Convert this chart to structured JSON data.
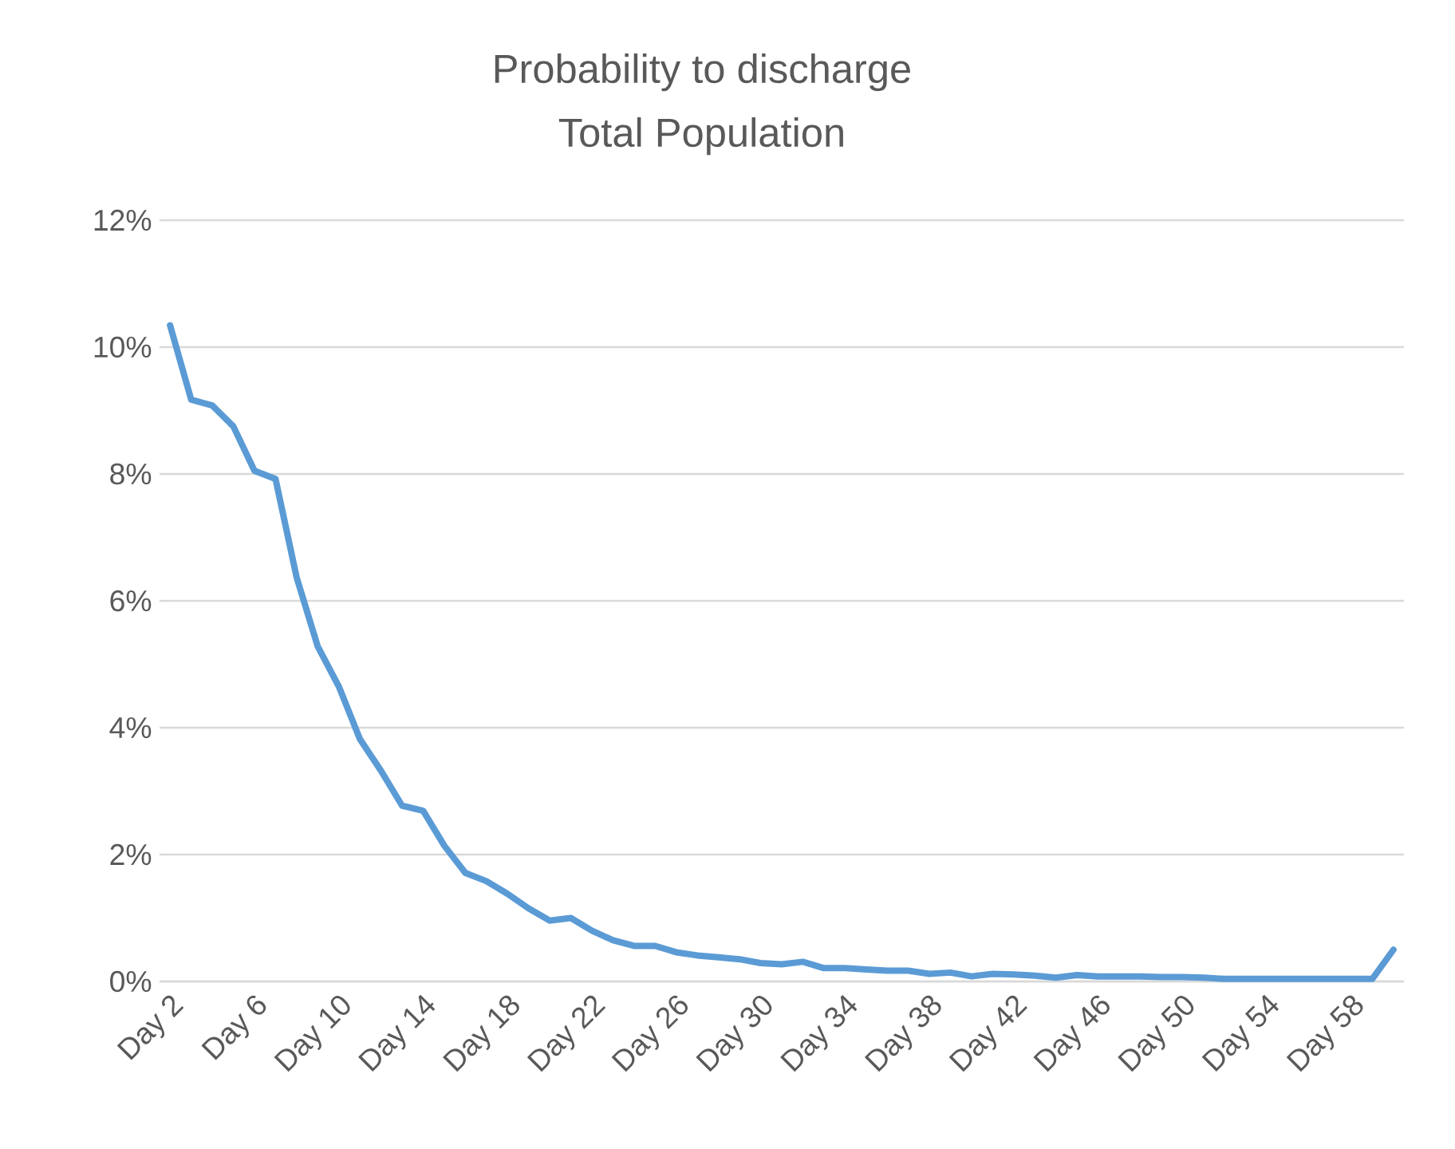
{
  "chart_data": {
    "type": "line",
    "title": "Probability to discharge",
    "subtitle": "Total Population",
    "categories": [
      "Day 2",
      null,
      null,
      null,
      "Day 6",
      null,
      null,
      null,
      "Day 10",
      null,
      null,
      null,
      "Day 14",
      null,
      null,
      null,
      "Day 18",
      null,
      null,
      null,
      "Day 22",
      null,
      null,
      null,
      "Day 26",
      null,
      null,
      null,
      "Day 30",
      null,
      null,
      null,
      "Day 34",
      null,
      null,
      null,
      "Day 38",
      null,
      null,
      null,
      "Day 42",
      null,
      null,
      null,
      "Day 46",
      null,
      null,
      null,
      "Day 50",
      null,
      null,
      null,
      "Day 54",
      null,
      null,
      null,
      "Day 58",
      null,
      null
    ],
    "series": [
      {
        "color": "#5b9bd5",
        "values": [
          10.34,
          9.17,
          9.08,
          8.75,
          8.05,
          7.92,
          6.37,
          5.28,
          4.65,
          3.82,
          3.32,
          2.77,
          2.69,
          2.14,
          1.71,
          1.58,
          1.38,
          1.15,
          0.96,
          1.0,
          0.8,
          0.65,
          0.56,
          0.56,
          0.46,
          0.41,
          0.38,
          0.35,
          0.29,
          0.27,
          0.31,
          0.21,
          0.21,
          0.19,
          0.17,
          0.17,
          0.12,
          0.14,
          0.08,
          0.12,
          0.11,
          0.09,
          0.06,
          0.1,
          0.08,
          0.08,
          0.08,
          0.07,
          0.07,
          0.06,
          0.04,
          0.04,
          0.04,
          0.04,
          0.04,
          0.04,
          0.04,
          0.04,
          0.5
        ]
      }
    ],
    "ylim": [
      0,
      12
    ],
    "yticks": [
      {
        "value": 0,
        "label": "0%"
      },
      {
        "value": 2,
        "label": "2%"
      },
      {
        "value": 4,
        "label": "4%"
      },
      {
        "value": 6,
        "label": "6%"
      },
      {
        "value": 8,
        "label": "8%"
      },
      {
        "value": 10,
        "label": "10%"
      },
      {
        "value": 12,
        "label": "12%"
      }
    ],
    "grid": "y",
    "marker": "none",
    "line_style": "solid"
  }
}
